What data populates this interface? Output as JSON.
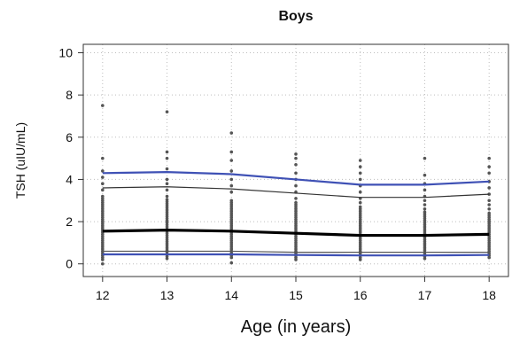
{
  "chart_data": {
    "type": "line",
    "title": "Boys",
    "xlabel": "Age (in years)",
    "ylabel": "TSH (uIU/mL)",
    "x": [
      12,
      13,
      14,
      15,
      16,
      17,
      18
    ],
    "xlim": [
      11.7,
      18.3
    ],
    "ylim": [
      -0.6,
      10.4
    ],
    "y_ticks": [
      0,
      2,
      4,
      6,
      8,
      10
    ],
    "grid": true,
    "series": [
      {
        "values": [
          4.3,
          4.35,
          4.25,
          4.0,
          3.75,
          3.75,
          3.9
        ],
        "color": "#3f51b5",
        "stroke": "thick"
      },
      {
        "values": [
          3.6,
          3.65,
          3.55,
          3.35,
          3.15,
          3.15,
          3.3
        ],
        "color": "#333333",
        "stroke": "thin"
      },
      {
        "values": [
          1.55,
          1.6,
          1.55,
          1.45,
          1.35,
          1.35,
          1.4
        ],
        "color": "#000000",
        "stroke": "bold"
      },
      {
        "values": [
          0.6,
          0.6,
          0.6,
          0.55,
          0.55,
          0.55,
          0.55
        ],
        "color": "#555555",
        "stroke": "thin"
      },
      {
        "values": [
          0.45,
          0.45,
          0.45,
          0.42,
          0.4,
          0.4,
          0.42
        ],
        "color": "#3f51b5",
        "stroke": "thick"
      }
    ],
    "scatter_points": [
      {
        "x": 12,
        "y": [
          0.0,
          0.2,
          0.3,
          0.4,
          0.5,
          0.6,
          0.7,
          0.8,
          0.9,
          1.0,
          1.1,
          1.2,
          1.3,
          1.4,
          1.5,
          1.6,
          1.7,
          1.8,
          1.9,
          2.0,
          2.1,
          2.2,
          2.3,
          2.4,
          2.5,
          2.6,
          2.7,
          2.8,
          2.9,
          3.0,
          3.1,
          3.2,
          3.5,
          3.8,
          4.1,
          4.4,
          5.0,
          7.5
        ]
      },
      {
        "x": 13,
        "y": [
          0.25,
          0.35,
          0.45,
          0.55,
          0.65,
          0.75,
          0.85,
          0.95,
          1.05,
          1.15,
          1.25,
          1.35,
          1.45,
          1.55,
          1.65,
          1.75,
          1.85,
          1.95,
          2.05,
          2.15,
          2.25,
          2.35,
          2.45,
          2.55,
          2.65,
          2.75,
          2.85,
          2.95,
          3.05,
          3.2,
          3.5,
          3.8,
          4.0,
          4.5,
          5.0,
          5.3,
          7.2
        ]
      },
      {
        "x": 14,
        "y": [
          0.05,
          0.3,
          0.4,
          0.5,
          0.6,
          0.7,
          0.8,
          0.9,
          1.0,
          1.1,
          1.2,
          1.3,
          1.4,
          1.5,
          1.6,
          1.7,
          1.8,
          1.9,
          2.0,
          2.1,
          2.2,
          2.3,
          2.4,
          2.5,
          2.6,
          2.7,
          2.8,
          2.9,
          3.0,
          3.4,
          3.7,
          4.0,
          4.4,
          4.9,
          5.3,
          6.2
        ]
      },
      {
        "x": 15,
        "y": [
          0.2,
          0.3,
          0.4,
          0.5,
          0.6,
          0.7,
          0.8,
          0.9,
          1.0,
          1.1,
          1.2,
          1.3,
          1.4,
          1.5,
          1.6,
          1.7,
          1.8,
          1.9,
          2.0,
          2.1,
          2.2,
          2.3,
          2.4,
          2.5,
          2.6,
          2.7,
          2.8,
          2.9,
          3.1,
          3.4,
          3.7,
          4.0,
          4.3,
          4.7,
          5.0,
          5.2
        ]
      },
      {
        "x": 16,
        "y": [
          0.2,
          0.3,
          0.4,
          0.5,
          0.6,
          0.7,
          0.8,
          0.9,
          1.0,
          1.1,
          1.2,
          1.3,
          1.4,
          1.5,
          1.6,
          1.7,
          1.8,
          1.9,
          2.0,
          2.1,
          2.2,
          2.3,
          2.4,
          2.5,
          2.6,
          2.7,
          2.9,
          3.1,
          3.4,
          3.7,
          4.0,
          4.3,
          4.6,
          4.9
        ]
      },
      {
        "x": 17,
        "y": [
          0.25,
          0.35,
          0.45,
          0.55,
          0.65,
          0.75,
          0.85,
          0.95,
          1.05,
          1.15,
          1.25,
          1.35,
          1.45,
          1.55,
          1.65,
          1.75,
          1.85,
          1.95,
          2.05,
          2.15,
          2.25,
          2.35,
          2.45,
          2.6,
          2.8,
          3.0,
          3.2,
          3.5,
          3.8,
          4.2,
          5.0
        ]
      },
      {
        "x": 18,
        "y": [
          0.3,
          0.4,
          0.5,
          0.6,
          0.7,
          0.8,
          0.9,
          1.0,
          1.1,
          1.2,
          1.3,
          1.4,
          1.5,
          1.6,
          1.7,
          1.8,
          1.9,
          2.0,
          2.1,
          2.2,
          2.3,
          2.4,
          2.6,
          2.8,
          3.0,
          3.3,
          3.6,
          3.9,
          4.3,
          4.6,
          5.0
        ]
      }
    ]
  }
}
